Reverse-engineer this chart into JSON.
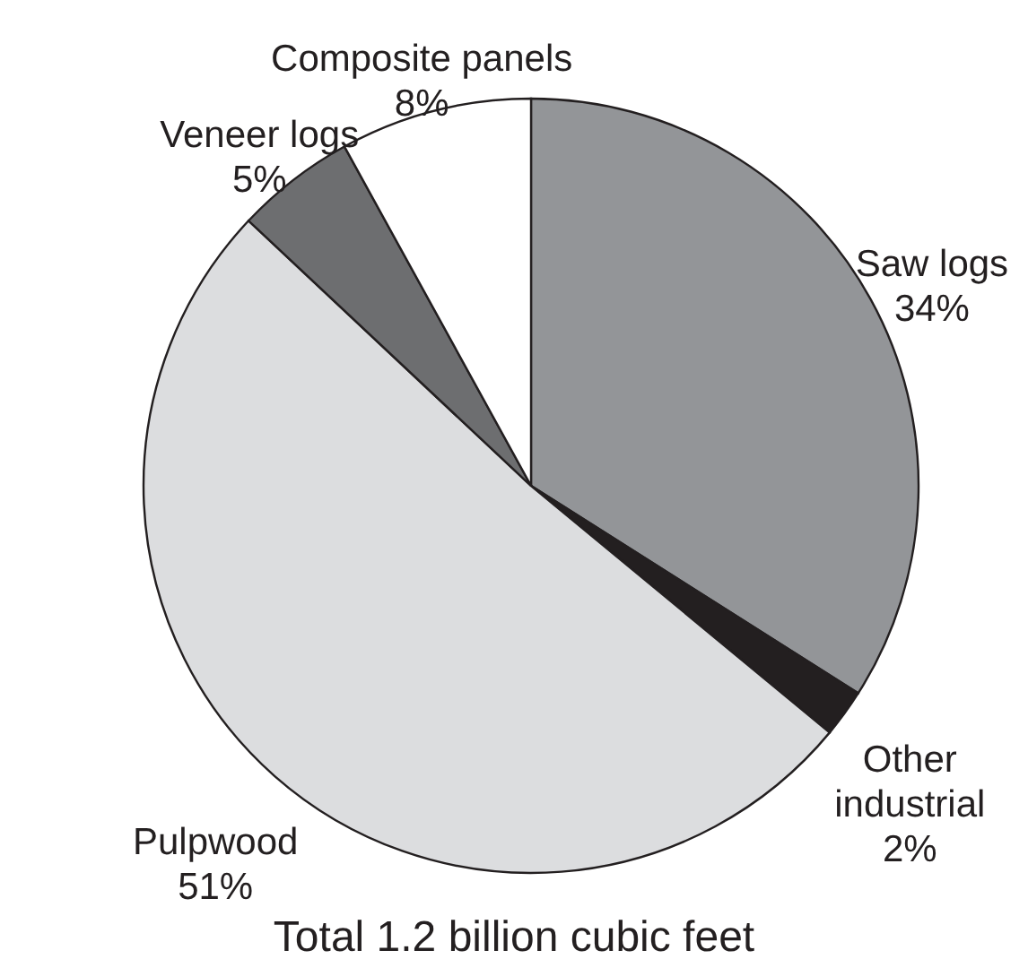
{
  "chart_data": {
    "type": "pie",
    "title": "Total 1.2 billion cubic feet",
    "categories": [
      "Saw logs",
      "Other industrial",
      "Pulpwood",
      "Veneer logs",
      "Composite panels"
    ],
    "values": [
      34,
      2,
      51,
      5,
      8
    ],
    "value_labels": [
      "34%",
      "2%",
      "51%",
      "5%",
      "8%"
    ],
    "colors": [
      "#939598",
      "#231f20",
      "#dcdddf",
      "#6d6e70",
      "#ffffff"
    ]
  }
}
